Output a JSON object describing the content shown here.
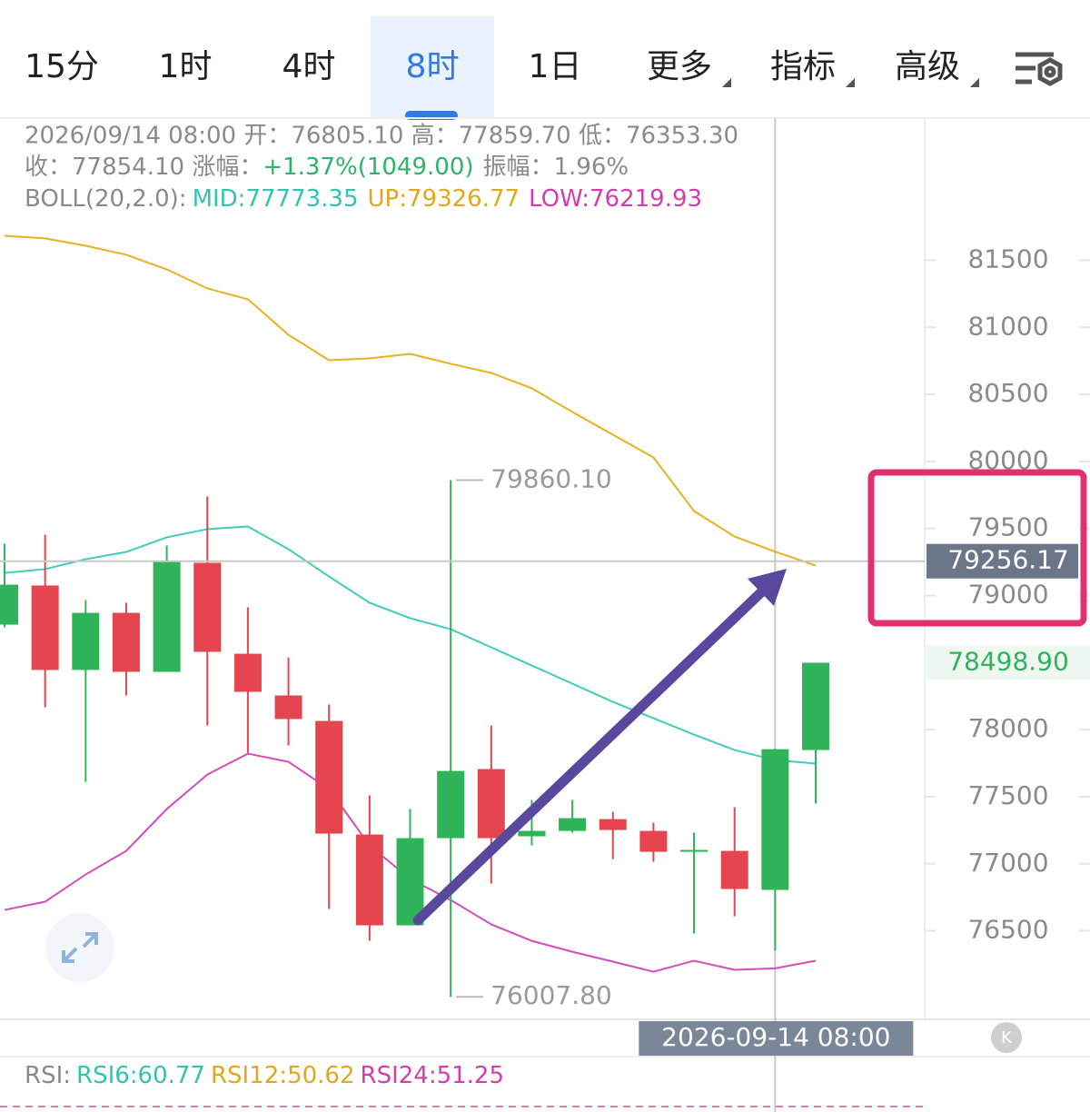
{
  "tabs": [
    "15分",
    "1时",
    "4时",
    "8时",
    "1日",
    "更多",
    "指标",
    "高级"
  ],
  "info": {
    "line1": "2026/09/14 08:00 开：76805.10 高：77859.70 低：76353.30",
    "line2": [
      "收：77854.10 涨幅：",
      "+1.37%(1049.00)",
      "振幅：1.96%"
    ],
    "line3": [
      "BOLL(20,2.0):",
      "MID:77773.35",
      "UP:79326.77",
      "LOW:76219.93"
    ]
  },
  "rsi": [
    "RSI:",
    "RSI6:60.77",
    "RSI12:50.62",
    "RSI24:51.25"
  ],
  "chart_data": {
    "type": "candlestick",
    "ylim": [
      75840,
      82560
    ],
    "yticks": [
      76500,
      77000,
      77500,
      78000,
      79000,
      79500,
      80000,
      80500,
      81000,
      81500
    ],
    "open": [
      78783,
      79075,
      78445,
      78871,
      78431,
      79244,
      78566,
      78255,
      78065,
      77218,
      76541,
      77191,
      77706,
      77205,
      77245,
      77333,
      77245,
      77103,
      77096,
      76805.1,
      77848
    ],
    "close": [
      79081,
      78445,
      78871,
      78431,
      79251,
      78580,
      78282,
      78079,
      77225,
      76541,
      77191,
      77692,
      77191,
      77245,
      77340,
      77252,
      77089,
      77103,
      76812,
      77854.1,
      78498.9
    ],
    "high": [
      79386,
      79454,
      78966,
      78946,
      79373,
      79739,
      78912,
      78539,
      78187,
      77510,
      77408,
      79860.1,
      78031,
      77476,
      77476,
      77388,
      77306,
      77232,
      77422,
      77859.7,
      78498.9
    ],
    "low": [
      78763,
      78167,
      77611,
      78255,
      78431,
      78031,
      77828,
      77882,
      76663,
      76426,
      76541,
      76007.8,
      76852,
      77137,
      77232,
      77035,
      77015,
      76480,
      76609,
      76353.3,
      77449
    ],
    "colors": {
      "up": "#2fb45a",
      "down": "#e5454f"
    },
    "lines": [
      {
        "name": "UP",
        "color": "#e6b21f",
        "values": [
          81683,
          81663,
          81608,
          81541,
          81432,
          81290,
          81209,
          80944,
          80755,
          80768,
          80802,
          80728,
          80660,
          80545,
          80369,
          80199,
          80030,
          79630,
          79440,
          79326.77,
          79224
        ]
      },
      {
        "name": "MID",
        "color": "#3fcdb8",
        "values": [
          79169,
          79197,
          79271,
          79325,
          79434,
          79495,
          79515,
          79346,
          79142,
          78946,
          78831,
          78749,
          78614,
          78478,
          78343,
          78207,
          78085,
          77963,
          77848,
          77773.35,
          77747
        ]
      },
      {
        "name": "LOW",
        "color": "#d64cbc",
        "values": [
          76656,
          76717,
          76920,
          77096,
          77408,
          77665,
          77821,
          77760,
          77557,
          77137,
          76886,
          76730,
          76548,
          76425,
          76344,
          76270,
          76195,
          76277,
          76209,
          76219.93,
          76277
        ]
      }
    ],
    "max_label": {
      "value": 79860.1,
      "label": "79860.10",
      "index": 11
    },
    "min_label": {
      "value": 76007.8,
      "label": "76007.80",
      "index": 11
    },
    "last_price": {
      "value": 78498.9,
      "label": "78498.90"
    },
    "crosshair": {
      "value": 79256.17,
      "index": 19,
      "date": "2026-09-14 08:00"
    }
  }
}
